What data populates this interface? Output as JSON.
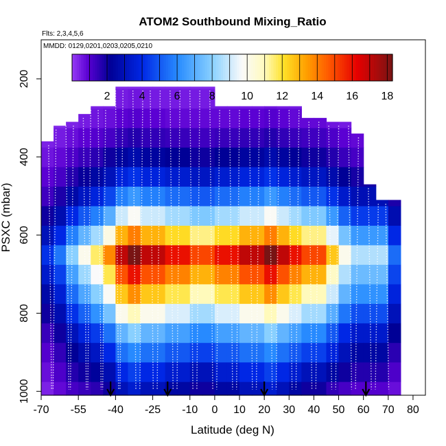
{
  "chart_data": {
    "type": "heatmap",
    "title": "ATOM2 Southbound Mixing_Ratio",
    "subtitle_flights": "Flts: 2,3,4,5,6",
    "subtitle_dates": "MMDD: 0129,0201,0203,0205,0210",
    "xlabel": "Latitude (deg N)",
    "ylabel": "PSXC (mbar)",
    "xlim": [
      -70,
      85
    ],
    "ylim": [
      1010,
      100
    ],
    "x_ticks": [
      -70,
      -55,
      -40,
      -25,
      -10,
      0,
      10,
      20,
      30,
      40,
      50,
      60,
      70,
      80
    ],
    "x_tick_labels": [
      "-70",
      "-55",
      "-40",
      "-25",
      "-10",
      "0",
      "10",
      "20",
      "30",
      "40",
      "50",
      "60",
      "70",
      "80"
    ],
    "y_ticks": [
      200,
      400,
      600,
      800,
      1000
    ],
    "y_tick_labels": [
      "200",
      "400",
      "600",
      "800",
      "1000"
    ],
    "colorbar": {
      "range": [
        0,
        18.3
      ],
      "ticks": [
        2,
        4,
        6,
        8,
        10,
        12,
        14,
        16,
        18
      ],
      "tick_labels": [
        "2",
        "4",
        "6",
        "8",
        "10",
        "12",
        "14",
        "16",
        "18"
      ]
    },
    "grid": false,
    "lat_bins": [
      -70,
      -65,
      -60,
      -55,
      -50,
      -45,
      -40,
      -35,
      -30,
      -25,
      -20,
      -15,
      -10,
      -5,
      0,
      5,
      10,
      15,
      20,
      25,
      30,
      35,
      40,
      45,
      50,
      55,
      60,
      65,
      70
    ],
    "pressure_bins": [
      1000,
      950,
      900,
      850,
      800,
      750,
      700,
      650,
      600,
      550,
      500,
      450,
      400,
      350,
      300,
      250,
      200
    ],
    "column_tops_mbar": [
      360,
      320,
      310,
      290,
      270,
      270,
      220,
      220,
      220,
      220,
      220,
      220,
      220,
      220,
      270,
      270,
      270,
      270,
      270,
      270,
      270,
      300,
      300,
      310,
      310,
      340,
      470,
      510,
      510
    ],
    "grid_values": [
      [
        0.4,
        0.8,
        1.2,
        1.4,
        1.6,
        2.0,
        3.0,
        3.5,
        3.0,
        3.0,
        2.5,
        2.5,
        2.0,
        2.0,
        2.5,
        2.5,
        3.0,
        3.0,
        3.5,
        3.0,
        2.5,
        2.0,
        2.0,
        1.5,
        1.2,
        1.0,
        1.0,
        1.0,
        0.7
      ],
      [
        0.7,
        1.1,
        1.7,
        2.0,
        2.3,
        2.8,
        4.0,
        4.5,
        4.0,
        4.0,
        3.5,
        3.5,
        3.0,
        3.0,
        3.5,
        3.5,
        4.0,
        4.0,
        4.5,
        4.0,
        3.5,
        3.0,
        3.0,
        2.5,
        2.0,
        1.7,
        1.7,
        1.7,
        1.1
      ],
      [
        1.0,
        1.5,
        2.2,
        2.8,
        3.2,
        4.0,
        5.5,
        6.0,
        5.5,
        5.5,
        5.0,
        5.0,
        4.5,
        4.5,
        5.0,
        5.0,
        5.5,
        5.5,
        6.0,
        5.5,
        5.0,
        4.5,
        4.5,
        3.8,
        3.0,
        2.5,
        2.5,
        2.5,
        1.6
      ],
      [
        1.4,
        2.0,
        3.0,
        3.8,
        4.4,
        5.5,
        7.2,
        8.0,
        7.2,
        7.2,
        6.6,
        6.6,
        6.0,
        6.0,
        6.6,
        6.6,
        7.2,
        7.2,
        8.0,
        7.2,
        6.6,
        6.0,
        6.0,
        5.0,
        4.0,
        3.4,
        3.4,
        3.4,
        2.2
      ],
      [
        2.0,
        2.8,
        4.2,
        5.2,
        6.2,
        7.6,
        10.0,
        11.0,
        10.0,
        10.0,
        9.2,
        9.2,
        8.4,
        8.4,
        9.2,
        9.2,
        10.0,
        10.0,
        11.0,
        10.0,
        9.2,
        8.4,
        8.4,
        7.0,
        5.6,
        4.8,
        4.8,
        4.8,
        3.0
      ],
      [
        2.6,
        3.6,
        5.4,
        6.8,
        8.0,
        9.8,
        12.6,
        13.7,
        12.6,
        12.6,
        11.8,
        11.8,
        11.0,
        11.0,
        11.8,
        11.8,
        12.6,
        12.6,
        13.7,
        12.6,
        11.8,
        11.0,
        11.0,
        9.0,
        7.2,
        6.2,
        6.2,
        6.2,
        3.8
      ],
      [
        3.4,
        4.5,
        6.6,
        8.3,
        9.7,
        11.8,
        14.8,
        16.0,
        14.8,
        14.8,
        13.9,
        13.9,
        13.0,
        13.0,
        13.9,
        13.9,
        14.8,
        14.8,
        16.0,
        14.8,
        13.9,
        13.0,
        13.0,
        10.8,
        8.6,
        7.4,
        7.4,
        7.4,
        4.6
      ],
      [
        4.2,
        5.6,
        8.0,
        10.0,
        11.6,
        13.8,
        17.0,
        18.3,
        17.0,
        17.0,
        16.0,
        16.0,
        15.0,
        15.0,
        16.0,
        16.0,
        17.0,
        17.0,
        18.3,
        17.0,
        16.0,
        15.0,
        15.0,
        12.6,
        10.0,
        8.6,
        8.6,
        8.6,
        5.4
      ],
      [
        3.0,
        4.0,
        5.8,
        7.2,
        8.4,
        10.2,
        13.0,
        14.0,
        13.0,
        13.0,
        12.2,
        12.2,
        11.4,
        11.4,
        12.2,
        12.2,
        13.0,
        13.0,
        14.0,
        13.0,
        12.2,
        11.4,
        11.4,
        9.4,
        7.6,
        6.4,
        6.4,
        6.4,
        4.0
      ],
      [
        2.0,
        2.8,
        4.0,
        5.0,
        5.8,
        7.0,
        9.0,
        9.8,
        9.0,
        9.0,
        8.4,
        8.4,
        7.8,
        7.8,
        8.4,
        8.4,
        9.0,
        9.0,
        9.8,
        9.0,
        8.4,
        7.8,
        7.8,
        6.4,
        5.2,
        4.4,
        4.4,
        4.4,
        2.8
      ],
      [
        1.3,
        1.8,
        2.6,
        3.2,
        3.8,
        4.6,
        5.8,
        6.4,
        5.8,
        5.8,
        5.4,
        5.4,
        5.0,
        5.0,
        5.4,
        5.4,
        5.8,
        5.8,
        6.4,
        5.8,
        5.4,
        5.0,
        5.0,
        4.2,
        3.4,
        2.9,
        2.9,
        2.9,
        1.8
      ],
      [
        0.9,
        1.2,
        1.7,
        2.1,
        2.5,
        3.0,
        3.8,
        4.2,
        3.8,
        3.8,
        3.5,
        3.5,
        3.2,
        3.2,
        3.5,
        3.5,
        3.8,
        3.8,
        4.2,
        3.8,
        3.5,
        3.2,
        3.2,
        2.7,
        2.2,
        1.9,
        1.9,
        1.9,
        1.2
      ],
      [
        0.6,
        0.8,
        1.1,
        1.4,
        1.6,
        2.0,
        2.4,
        2.7,
        2.4,
        2.4,
        2.2,
        2.2,
        2.0,
        2.0,
        2.2,
        2.2,
        2.4,
        2.4,
        2.7,
        2.4,
        2.2,
        2.0,
        2.0,
        1.7,
        1.4,
        1.2,
        1.2,
        1.2,
        0.8
      ],
      [
        0.4,
        0.5,
        0.7,
        0.9,
        1.0,
        1.2,
        1.5,
        1.7,
        1.5,
        1.5,
        1.4,
        1.4,
        1.3,
        1.3,
        1.4,
        1.4,
        1.5,
        1.5,
        1.7,
        1.5,
        1.4,
        1.3,
        1.3,
        1.1,
        0.9,
        0.8,
        0.8,
        0.8,
        0.5
      ],
      [
        0.3,
        0.3,
        0.4,
        0.5,
        0.6,
        0.7,
        0.9,
        1.0,
        0.9,
        0.9,
        0.8,
        0.8,
        0.8,
        0.8,
        0.8,
        0.8,
        0.9,
        0.9,
        1.0,
        0.9,
        0.8,
        0.8,
        0.8,
        0.6,
        0.5,
        0.5,
        0.5,
        0.5,
        0.3
      ],
      [
        0.2,
        0.2,
        0.3,
        0.3,
        0.4,
        0.4,
        0.5,
        0.6,
        0.5,
        0.5,
        0.5,
        0.5,
        0.5,
        0.5,
        0.5,
        0.5,
        0.5,
        0.5,
        0.6,
        0.5,
        0.5,
        0.5,
        0.5,
        0.4,
        0.3,
        0.3,
        0.3,
        0.3,
        0.2
      ],
      [
        0.1,
        0.1,
        0.2,
        0.2,
        0.2,
        0.3,
        0.3,
        0.3,
        0.3,
        0.3,
        0.3,
        0.3,
        0.3,
        0.3,
        0.3,
        0.3,
        0.3,
        0.3,
        0.3,
        0.3,
        0.3,
        0.3,
        0.3,
        0.2,
        0.2,
        0.2,
        0.2,
        0.2,
        0.1
      ]
    ],
    "arrow_latitudes": [
      -42,
      -19,
      20,
      61
    ],
    "profile_latitudes": [
      -67,
      -64,
      -60,
      -57,
      -53,
      -50,
      -47,
      -44,
      -40,
      -37,
      -33,
      -29,
      -26,
      -22,
      -18,
      -14,
      -10,
      -6,
      -2,
      2,
      6,
      10,
      14,
      18,
      22,
      26,
      30,
      34,
      38,
      42,
      46,
      50,
      54,
      58,
      62,
      66,
      69
    ]
  }
}
